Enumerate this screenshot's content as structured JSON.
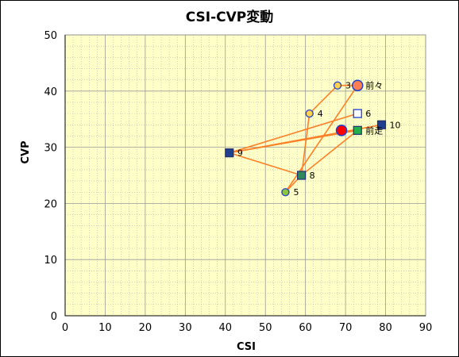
{
  "chart_data": {
    "type": "scatter",
    "title": "CSI-CVP変動",
    "xlabel": "CSI",
    "ylabel": "CVP",
    "xlim": [
      0,
      90
    ],
    "ylim": [
      0,
      50
    ],
    "x_ticks": [
      0,
      10,
      20,
      30,
      40,
      50,
      60,
      70,
      80,
      90
    ],
    "y_ticks": [
      0,
      10,
      20,
      30,
      40,
      50
    ],
    "grid": true,
    "colors": {
      "plot_bg": "#ffffc8",
      "grid": "#b3b3b3",
      "line": "#ff7f27",
      "marker_edge_blue": "#1f3fcf"
    },
    "path_order": [
      "10",
      "9",
      "前走",
      "8",
      "5",
      "前々",
      "3",
      "4",
      "8",
      "9",
      "6"
    ],
    "points": [
      {
        "label": "前々",
        "x": 73,
        "y": 41,
        "marker": "circle-large",
        "fill": "#ff7f50"
      },
      {
        "label": "3",
        "x": 68,
        "y": 41,
        "marker": "circle",
        "fill": "#ffd24d"
      },
      {
        "label": "4",
        "x": 61,
        "y": 36,
        "marker": "circle",
        "fill": "#ffd24d"
      },
      {
        "label": "6",
        "x": 73,
        "y": 36,
        "marker": "square-open",
        "fill": "#ffffff"
      },
      {
        "label": "10",
        "x": 79,
        "y": 34,
        "marker": "square",
        "fill": "#1f3f8f"
      },
      {
        "label": "前走",
        "x": 73,
        "y": 33,
        "marker": "square",
        "fill": "#22b14c"
      },
      {
        "label": "9",
        "x": 41,
        "y": 29,
        "marker": "square",
        "fill": "#1f3f8f"
      },
      {
        "label": "8",
        "x": 59,
        "y": 25,
        "marker": "square",
        "fill": "#2e8b57"
      },
      {
        "label": "5",
        "x": 55,
        "y": 22,
        "marker": "circle",
        "fill": "#8dc63f"
      },
      {
        "label": "",
        "x": 69,
        "y": 33,
        "marker": "circle-large",
        "fill": "#ff0000"
      }
    ]
  }
}
